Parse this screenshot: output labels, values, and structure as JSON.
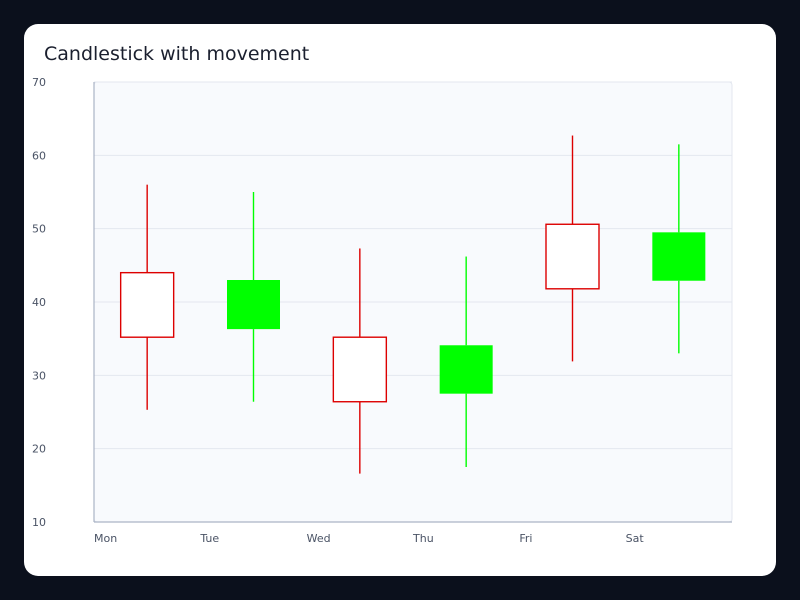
{
  "title": "Candlestick with movement",
  "chart_data": {
    "type": "candlestick",
    "title": "Candlestick with movement",
    "categories": [
      "Mon",
      "Tue",
      "Wed",
      "Thu",
      "Fri",
      "Sat"
    ],
    "candles": [
      {
        "x": "Mon",
        "open": 44,
        "high": 56,
        "low": 25.3,
        "close": 35.2
      },
      {
        "x": "Tue",
        "open": 36.3,
        "high": 55,
        "low": 26.4,
        "close": 43
      },
      {
        "x": "Wed",
        "open": 35.2,
        "high": 47.3,
        "low": 16.6,
        "close": 26.4
      },
      {
        "x": "Thu",
        "open": 27.5,
        "high": 46.2,
        "low": 17.5,
        "close": 34.1
      },
      {
        "x": "Fri",
        "open": 50.6,
        "high": 62.7,
        "low": 31.9,
        "close": 41.8
      },
      {
        "x": "Sat",
        "open": 42.9,
        "high": 61.5,
        "low": 33,
        "close": 49.5
      }
    ],
    "ylim": [
      10,
      70
    ],
    "yticks": [
      10,
      20,
      30,
      40,
      50,
      60,
      70
    ],
    "grid": true,
    "colors": {
      "up": "#00ff00",
      "down": "#dd0000",
      "plot_background": "#f8fafd",
      "grid": "#e3e7ef",
      "axis": "#aab3c5"
    }
  }
}
